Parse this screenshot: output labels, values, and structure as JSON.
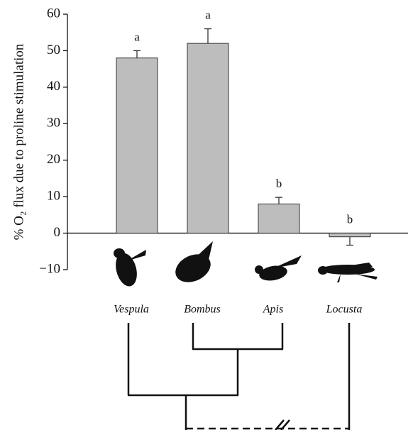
{
  "chart_data": {
    "type": "bar",
    "y_label": "% O₂ flux due to proline stimulation",
    "categories": [
      "Vespula",
      "Bombus",
      "Apis",
      "Locusta"
    ],
    "values": [
      48,
      52,
      8,
      -1
    ],
    "errors": [
      2,
      4,
      1.8,
      2.3
    ],
    "letters": [
      "a",
      "a",
      "b",
      "b"
    ],
    "color": "#bdbdbd",
    "ylim": [
      -10,
      60
    ],
    "yticks": [
      {
        "value": -10,
        "label": "−10"
      },
      0,
      10,
      20,
      30,
      40,
      50,
      60
    ]
  }
}
